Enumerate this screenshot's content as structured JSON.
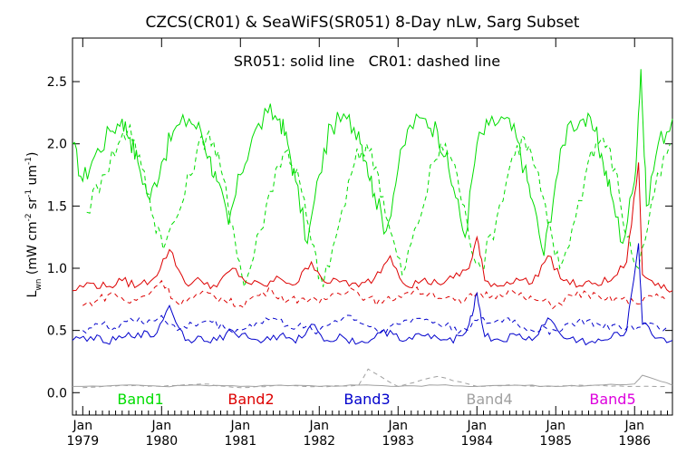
{
  "chart_data": {
    "type": "line",
    "title": "CZCS(CR01) & SeaWiFS(SR051) 8-Day nLw, Sarg Subset",
    "annotation": "SR051: solid line   CR01: dashed line",
    "ylabel": {
      "base": "L",
      "sub": "wn",
      "units_open": " (mW cm",
      "sup1": "-2",
      "mid": " sr",
      "sup2": "-1",
      "mid2": " um",
      "sup3": "-1",
      "close": ")"
    },
    "ylim": [
      -0.18,
      2.85
    ],
    "xlim": [
      1978.87,
      1986.48
    ],
    "yticks": [
      "0.0",
      "0.5",
      "1.0",
      "1.5",
      "2.0",
      "2.5"
    ],
    "ytick_values": [
      0.0,
      0.5,
      1.0,
      1.5,
      2.0,
      2.5
    ],
    "xticks": [
      {
        "month": "Jan",
        "year": "1979",
        "x": 1979.0
      },
      {
        "month": "Jan",
        "year": "1980",
        "x": 1980.0
      },
      {
        "month": "Jan",
        "year": "1981",
        "x": 1981.0
      },
      {
        "month": "Jan",
        "year": "1982",
        "x": 1982.0
      },
      {
        "month": "Jan",
        "year": "1983",
        "x": 1983.0
      },
      {
        "month": "Jan",
        "year": "1984",
        "x": 1984.0
      },
      {
        "month": "Jan",
        "year": "1985",
        "x": 1985.0
      },
      {
        "month": "Jan",
        "year": "1986",
        "x": 1986.0
      }
    ],
    "legend": [
      {
        "label": "Band1",
        "color": "#00dd00"
      },
      {
        "label": "Band2",
        "color": "#dd0000"
      },
      {
        "label": "Band3",
        "color": "#0000cc"
      },
      {
        "label": "Band4",
        "color": "#a0a0a0"
      },
      {
        "label": "Band5",
        "color": "#dd00dd"
      }
    ],
    "series": [
      {
        "name": "Band1",
        "line": "solid",
        "color": "#00dd00",
        "x": [
          1978.87,
          1979.0,
          1979.15,
          1979.35,
          1979.5,
          1979.6,
          1979.7,
          1979.85,
          1980.0,
          1980.15,
          1980.35,
          1980.5,
          1980.6,
          1980.7,
          1980.85,
          1981.0,
          1981.15,
          1981.35,
          1981.5,
          1981.6,
          1981.7,
          1981.85,
          1982.0,
          1982.15,
          1982.35,
          1982.5,
          1982.6,
          1982.7,
          1982.85,
          1983.0,
          1983.15,
          1983.35,
          1983.5,
          1983.6,
          1983.7,
          1983.85,
          1984.0,
          1984.15,
          1984.35,
          1984.5,
          1984.6,
          1984.7,
          1984.85,
          1985.0,
          1985.15,
          1985.35,
          1985.5,
          1985.6,
          1985.7,
          1985.85,
          1986.0,
          1986.08,
          1986.15,
          1986.3,
          1986.48
        ],
        "y": [
          2.0,
          1.7,
          1.9,
          2.1,
          2.2,
          2.05,
          1.85,
          1.55,
          1.85,
          2.1,
          2.2,
          2.1,
          1.9,
          1.7,
          1.35,
          1.75,
          2.05,
          2.25,
          2.2,
          2.0,
          1.7,
          1.2,
          1.75,
          2.15,
          2.2,
          2.1,
          1.85,
          1.6,
          1.3,
          1.8,
          2.15,
          2.2,
          2.1,
          1.9,
          1.65,
          1.25,
          2.0,
          2.15,
          2.2,
          2.05,
          1.8,
          1.55,
          1.1,
          1.7,
          2.15,
          2.2,
          2.1,
          1.85,
          1.6,
          1.2,
          1.7,
          2.6,
          1.5,
          2.0,
          2.2
        ]
      },
      {
        "name": "Band1",
        "line": "dashed",
        "color": "#00dd00",
        "x": [
          1979.05,
          1979.25,
          1979.45,
          1979.6,
          1979.75,
          1979.9,
          1980.05,
          1980.25,
          1980.45,
          1980.6,
          1980.75,
          1980.9,
          1981.05,
          1981.25,
          1981.45,
          1981.6,
          1981.75,
          1981.9,
          1982.05,
          1982.25,
          1982.45,
          1982.6,
          1982.75,
          1982.9,
          1983.05,
          1983.25,
          1983.45,
          1983.6,
          1983.75,
          1983.9,
          1984.05,
          1984.25,
          1984.45,
          1984.6,
          1984.75,
          1984.9,
          1985.05,
          1985.25,
          1985.45,
          1985.6,
          1985.75,
          1985.9,
          1986.05,
          1986.25,
          1986.45
        ],
        "y": [
          1.45,
          1.75,
          2.0,
          2.15,
          1.8,
          1.4,
          1.2,
          1.5,
          1.95,
          2.1,
          1.8,
          1.35,
          0.85,
          1.3,
          1.8,
          1.95,
          1.7,
          1.2,
          0.85,
          1.35,
          1.85,
          2.0,
          1.75,
          1.3,
          0.95,
          1.35,
          1.85,
          2.0,
          1.75,
          1.25,
          1.0,
          1.4,
          1.9,
          2.05,
          1.8,
          1.35,
          1.0,
          1.4,
          1.95,
          2.05,
          1.8,
          1.25,
          1.0,
          1.6,
          2.0
        ]
      },
      {
        "name": "Band2",
        "line": "solid",
        "color": "#dd0000",
        "x": [
          1978.87,
          1979.1,
          1979.3,
          1979.5,
          1979.7,
          1979.9,
          1980.1,
          1980.3,
          1980.5,
          1980.7,
          1980.9,
          1981.1,
          1981.3,
          1981.5,
          1981.7,
          1981.9,
          1982.1,
          1982.3,
          1982.5,
          1982.7,
          1982.9,
          1983.1,
          1983.3,
          1983.5,
          1983.7,
          1983.9,
          1984.0,
          1984.1,
          1984.3,
          1984.5,
          1984.7,
          1984.9,
          1985.1,
          1985.3,
          1985.5,
          1985.7,
          1985.9,
          1986.05,
          1986.1,
          1986.3,
          1986.48
        ],
        "y": [
          0.82,
          0.88,
          0.85,
          0.9,
          0.86,
          0.92,
          1.15,
          0.88,
          0.9,
          0.85,
          1.0,
          0.88,
          0.86,
          0.92,
          0.87,
          1.05,
          0.88,
          0.9,
          0.85,
          0.92,
          1.1,
          0.86,
          0.9,
          0.88,
          0.92,
          1.0,
          1.25,
          0.9,
          0.86,
          0.92,
          0.88,
          1.1,
          0.9,
          0.86,
          0.88,
          0.9,
          1.05,
          1.85,
          0.95,
          0.88,
          0.82
        ]
      },
      {
        "name": "Band2",
        "line": "dashed",
        "color": "#dd0000",
        "x": [
          1979.0,
          1979.2,
          1979.4,
          1979.6,
          1979.8,
          1980.0,
          1980.2,
          1980.4,
          1980.6,
          1980.8,
          1981.0,
          1981.2,
          1981.4,
          1981.6,
          1981.8,
          1982.0,
          1982.2,
          1982.4,
          1982.6,
          1982.8,
          1983.0,
          1983.2,
          1983.4,
          1983.6,
          1983.8,
          1984.0,
          1984.2,
          1984.4,
          1984.6,
          1984.8,
          1985.0,
          1985.2,
          1985.4,
          1985.6,
          1985.8,
          1986.0,
          1986.2,
          1986.4
        ],
        "y": [
          0.7,
          0.75,
          0.8,
          0.72,
          0.78,
          0.9,
          0.72,
          0.76,
          0.8,
          0.74,
          0.7,
          0.78,
          0.82,
          0.74,
          0.76,
          0.72,
          0.8,
          0.84,
          0.76,
          0.72,
          0.78,
          0.82,
          0.8,
          0.76,
          0.72,
          0.8,
          0.78,
          0.82,
          0.76,
          0.74,
          0.7,
          0.78,
          0.8,
          0.74,
          0.76,
          0.72,
          0.78,
          0.74
        ]
      },
      {
        "name": "Band3",
        "line": "solid",
        "color": "#0000cc",
        "x": [
          1978.87,
          1979.1,
          1979.3,
          1979.5,
          1979.7,
          1979.9,
          1980.1,
          1980.3,
          1980.5,
          1980.7,
          1980.9,
          1981.1,
          1981.3,
          1981.5,
          1981.7,
          1981.9,
          1982.1,
          1982.3,
          1982.5,
          1982.7,
          1982.9,
          1983.1,
          1983.3,
          1983.5,
          1983.7,
          1983.9,
          1984.0,
          1984.1,
          1984.3,
          1984.5,
          1984.7,
          1984.9,
          1985.1,
          1985.3,
          1985.5,
          1985.7,
          1985.9,
          1986.05,
          1986.1,
          1986.3,
          1986.48
        ],
        "y": [
          0.42,
          0.45,
          0.4,
          0.44,
          0.48,
          0.45,
          0.7,
          0.42,
          0.45,
          0.42,
          0.5,
          0.44,
          0.42,
          0.46,
          0.4,
          0.55,
          0.42,
          0.45,
          0.4,
          0.44,
          0.5,
          0.42,
          0.46,
          0.44,
          0.4,
          0.55,
          0.8,
          0.45,
          0.42,
          0.46,
          0.42,
          0.6,
          0.44,
          0.42,
          0.4,
          0.44,
          0.5,
          1.2,
          0.55,
          0.44,
          0.42
        ]
      },
      {
        "name": "Band3",
        "line": "dashed",
        "color": "#0000cc",
        "x": [
          1979.0,
          1979.2,
          1979.4,
          1979.6,
          1979.8,
          1980.0,
          1980.2,
          1980.4,
          1980.6,
          1980.8,
          1981.0,
          1981.2,
          1981.4,
          1981.6,
          1981.8,
          1982.0,
          1982.2,
          1982.4,
          1982.6,
          1982.8,
          1983.0,
          1983.2,
          1983.4,
          1983.6,
          1983.8,
          1984.0,
          1984.2,
          1984.4,
          1984.6,
          1984.8,
          1985.0,
          1985.2,
          1985.4,
          1985.6,
          1985.8,
          1986.0,
          1986.2,
          1986.4
        ],
        "y": [
          0.5,
          0.55,
          0.52,
          0.6,
          0.55,
          0.62,
          0.5,
          0.55,
          0.58,
          0.52,
          0.5,
          0.56,
          0.6,
          0.54,
          0.52,
          0.5,
          0.58,
          0.62,
          0.54,
          0.5,
          0.55,
          0.6,
          0.58,
          0.54,
          0.5,
          0.58,
          0.56,
          0.6,
          0.52,
          0.5,
          0.5,
          0.56,
          0.58,
          0.52,
          0.54,
          0.5,
          0.56,
          0.52
        ]
      },
      {
        "name": "Band4",
        "line": "solid",
        "color": "#a0a0a0",
        "x": [
          1978.87,
          1979.5,
          1980.0,
          1980.5,
          1981.0,
          1981.5,
          1982.0,
          1982.5,
          1983.0,
          1983.5,
          1984.0,
          1984.5,
          1985.0,
          1985.5,
          1986.0,
          1986.1,
          1986.48
        ],
        "y": [
          0.05,
          0.06,
          0.05,
          0.06,
          0.05,
          0.06,
          0.05,
          0.06,
          0.05,
          0.06,
          0.05,
          0.06,
          0.05,
          0.06,
          0.07,
          0.14,
          0.06
        ]
      },
      {
        "name": "Band4",
        "line": "dashed",
        "color": "#a0a0a0",
        "x": [
          1979.0,
          1979.5,
          1980.0,
          1980.5,
          1981.0,
          1981.5,
          1982.0,
          1982.5,
          1982.62,
          1983.0,
          1983.5,
          1984.0,
          1984.5,
          1985.0,
          1985.5,
          1986.0,
          1986.4
        ],
        "y": [
          0.04,
          0.06,
          0.05,
          0.07,
          0.04,
          0.06,
          0.05,
          0.06,
          0.19,
          0.05,
          0.13,
          0.05,
          0.06,
          0.05,
          0.06,
          0.05,
          0.05
        ]
      }
    ]
  }
}
